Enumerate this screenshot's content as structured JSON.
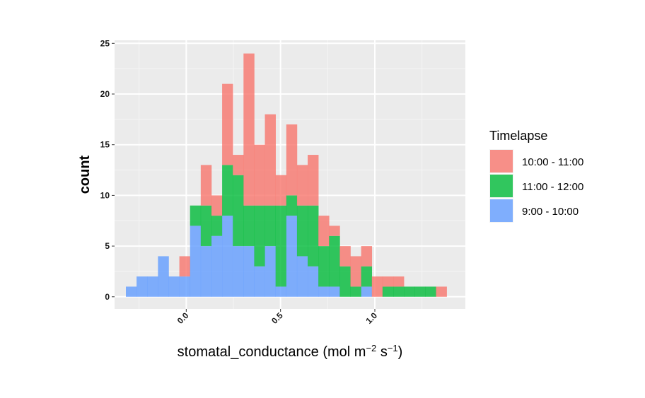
{
  "chart_data": {
    "type": "histogram",
    "xlabel_main": "stomatal_conductance (mol m",
    "xlabel_sup1": "−2",
    "xlabel_mid": " s",
    "xlabel_sup2": "−1",
    "xlabel_end": ")",
    "ylabel": "count",
    "xlim": [
      -0.38,
      1.48
    ],
    "ylim": [
      -1.2,
      25.3
    ],
    "x_ticks": [
      0.0,
      0.5,
      1.0
    ],
    "x_tick_labels": [
      "0.0",
      "0.5",
      "1.0"
    ],
    "y_ticks": [
      0,
      5,
      10,
      15,
      20,
      25
    ],
    "y_tick_labels": [
      "0",
      "5",
      "10",
      "15",
      "20",
      "25"
    ],
    "grid": true,
    "bin_start": -0.32,
    "bin_width": 0.0567,
    "legend": {
      "title": "Timelapse",
      "position": "right"
    },
    "series": [
      {
        "name": "9:00 - 10:00",
        "color": "#619CFF",
        "values": [
          1,
          2,
          2,
          4,
          2,
          2,
          7,
          5,
          6,
          8,
          5,
          5,
          3,
          5,
          1,
          8,
          4,
          3,
          1,
          1,
          0,
          0,
          1,
          0,
          0,
          0,
          0,
          0,
          0,
          0
        ]
      },
      {
        "name": "11:00 - 12:00",
        "color": "#00BA38",
        "values": [
          0,
          0,
          0,
          0,
          0,
          0,
          2,
          4,
          2,
          5,
          7,
          4,
          6,
          4,
          8,
          2,
          5,
          6,
          4,
          5,
          3,
          1,
          2,
          0,
          1,
          1,
          1,
          1,
          1,
          0
        ]
      },
      {
        "name": "10:00 - 11:00",
        "color": "#F8766D",
        "values": [
          0,
          0,
          0,
          0,
          0,
          2,
          0,
          4,
          2,
          8,
          2,
          15,
          6,
          9,
          3,
          7,
          4,
          5,
          3,
          1,
          2,
          3,
          2,
          2,
          1,
          1,
          0,
          0,
          0,
          1
        ]
      }
    ],
    "legend_order": [
      "10:00 - 11:00",
      "11:00 - 12:00",
      "9:00 - 10:00"
    ]
  }
}
